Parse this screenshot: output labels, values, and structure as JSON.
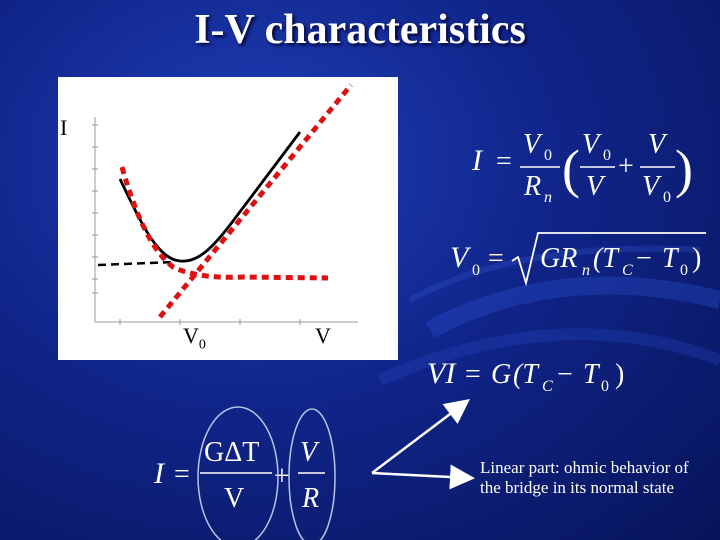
{
  "slide": {
    "title": "I-V characteristics"
  },
  "plot": {
    "y_axis_label": "I",
    "x_tick_v0_base": "V",
    "x_tick_v0_sub": "0",
    "x_axis_label": "V"
  },
  "equations": {
    "eq1": {
      "lhs": "I",
      "num_left": "V",
      "num_left_sub": "0",
      "den_left": "R",
      "den_left_sub": "n",
      "num_mid": "V",
      "num_mid_sub": "0",
      "den_mid": "V",
      "num_right": "V",
      "den_right": "V",
      "den_right_sub": "0",
      "equals": "=",
      "plus": "+"
    },
    "eq2": {
      "lhs": "V",
      "lhs_sub": "0",
      "equals": "=",
      "radicand_a": "GR",
      "radicand_sub": "n",
      "radicand_b": "(T",
      "tc_sub": "C",
      "minus": "−",
      "t0": "T",
      "t0_sub": "0",
      "close": ")"
    },
    "eq3": {
      "lhs": "VI",
      "equals": "=",
      "g": "G",
      "open": "(T",
      "tc_sub": "C",
      "minus": "−",
      "t0": "T",
      "t0_sub": "0",
      "close": ")"
    },
    "eq4": {
      "lhs": "I",
      "equals": "=",
      "num_left": "GΔT",
      "den_left": "V",
      "plus": "+",
      "num_right": "V",
      "den_right": "R"
    }
  },
  "annotation": {
    "text": "Linear part: ohmic behavior of the bridge in its normal state"
  },
  "colors": {
    "background": "#10258a",
    "dashed_curve": "#dd1111",
    "solid_curve": "#000000",
    "text": "#ffffff"
  }
}
